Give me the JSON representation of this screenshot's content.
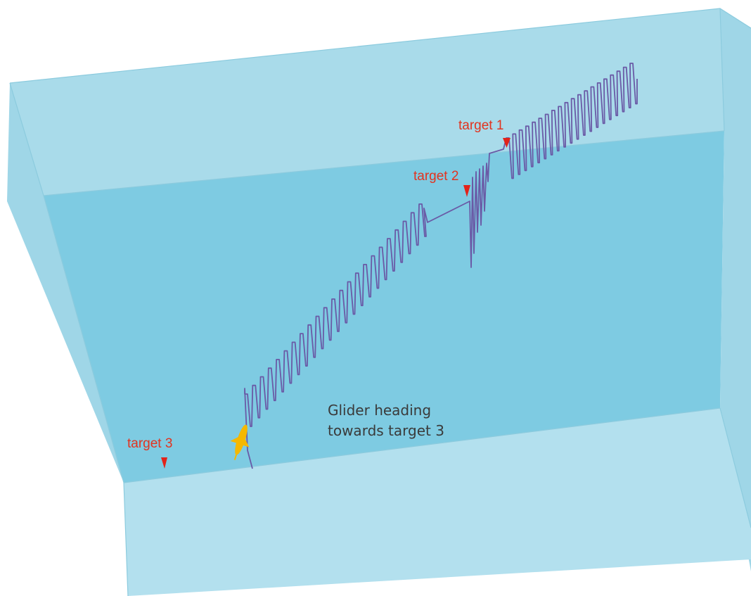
{
  "diagram": {
    "colors": {
      "tank_far_wall": "#a9dbea",
      "tank_floor": "#7ecbe2",
      "tank_side_wall": "#9fd6e7",
      "tank_front_wall": "#b3e0ee",
      "tank_edge": "#8ccbde",
      "trajectory": "#6a5aa6",
      "target_marker": "#e2231a",
      "target_label": "#e2331f",
      "glider": "#f5b800",
      "caption": "#3a3a3a"
    },
    "targets": [
      {
        "label": "target 1",
        "marker_icon": "red-pin"
      },
      {
        "label": "target 2",
        "marker_icon": "red-pin"
      },
      {
        "label": "target 3",
        "marker_icon": "red-pin"
      }
    ],
    "glider": {
      "icon": "glider-icon"
    },
    "caption": {
      "line1": "Glider heading",
      "line2": "towards target 3"
    }
  }
}
